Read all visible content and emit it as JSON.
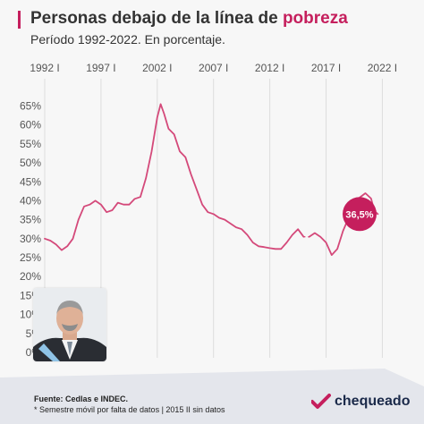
{
  "header": {
    "title_main": "Personas debajo de la línea de ",
    "title_highlight": "pobreza",
    "subtitle": "Período 1992-2022. En porcentaje."
  },
  "colors": {
    "accent": "#c51f5d",
    "line": "#d4497a",
    "grid": "#dddddd",
    "text": "#333333",
    "navy": "#1b2a4a"
  },
  "chart_data": {
    "type": "line",
    "title": "Personas debajo de la línea de pobreza",
    "subtitle": "Período 1992-2022. En porcentaje.",
    "xlabel": "",
    "ylabel": "",
    "x_ticks": [
      "1992 I",
      "1997 I",
      "2002 I",
      "2007 I",
      "2012 I",
      "2017 I",
      "2022 I"
    ],
    "x_tick_years": [
      1992,
      1997,
      2002,
      2007,
      2012,
      2017,
      2022
    ],
    "y_ticks": [
      "0%",
      "5%",
      "10%",
      "15%",
      "20%",
      "25%",
      "30%",
      "35%",
      "40%",
      "45%",
      "50%",
      "55%",
      "60%",
      "65%"
    ],
    "ylim": [
      0,
      67
    ],
    "xlim": [
      1992,
      2023
    ],
    "grid": "vertical",
    "legend": "none",
    "final_label": "36,5%",
    "series": [
      {
        "segments": [
          [
            [
              1992.0,
              30.0
            ],
            [
              1992.5,
              29.5
            ],
            [
              1993.0,
              28.5
            ],
            [
              1993.5,
              27.0
            ],
            [
              1994.0,
              28.0
            ],
            [
              1994.5,
              30.0
            ],
            [
              1995.0,
              35.0
            ],
            [
              1995.5,
              38.5
            ],
            [
              1996.0,
              39.0
            ],
            [
              1996.5,
              40.0
            ],
            [
              1997.0,
              39.0
            ],
            [
              1997.5,
              37.0
            ],
            [
              1998.0,
              37.5
            ],
            [
              1998.5,
              39.5
            ],
            [
              1999.0,
              39.0
            ],
            [
              1999.5,
              39.0
            ],
            [
              2000.0,
              40.5
            ],
            [
              2000.5,
              41.0
            ],
            [
              2001.0,
              46.0
            ],
            [
              2001.5,
              53.0
            ],
            [
              2002.0,
              62.0
            ],
            [
              2002.3,
              65.5
            ],
            [
              2002.6,
              63.0
            ],
            [
              2003.0,
              59.0
            ],
            [
              2003.5,
              57.5
            ],
            [
              2004.0,
              53.0
            ],
            [
              2004.5,
              51.5
            ],
            [
              2005.0,
              47.0
            ],
            [
              2005.5,
              43.0
            ],
            [
              2006.0,
              39.0
            ],
            [
              2006.5,
              37.0
            ],
            [
              2007.0,
              36.5
            ],
            [
              2007.5,
              35.5
            ],
            [
              2008.0,
              35.0
            ],
            [
              2008.5,
              34.0
            ],
            [
              2009.0,
              33.0
            ],
            [
              2009.5,
              32.5
            ],
            [
              2010.0,
              31.0
            ],
            [
              2010.5,
              29.0
            ],
            [
              2011.0,
              28.0
            ],
            [
              2011.5,
              27.8
            ],
            [
              2012.0,
              27.5
            ],
            [
              2012.5,
              27.3
            ],
            [
              2013.0,
              27.3
            ],
            [
              2013.5,
              29.0
            ],
            [
              2014.0,
              31.0
            ],
            [
              2014.5,
              32.5
            ],
            [
              2015.0,
              30.5
            ]
          ],
          [
            [
              2015.5,
              30.5
            ],
            [
              2016.0,
              31.5
            ],
            [
              2016.5,
              30.5
            ],
            [
              2017.0,
              29.0
            ],
            [
              2017.5,
              25.7
            ],
            [
              2018.0,
              27.3
            ],
            [
              2018.5,
              32.0
            ],
            [
              2019.0,
              35.5
            ],
            [
              2019.5,
              35.5
            ],
            [
              2020.0,
              40.9
            ],
            [
              2020.5,
              42.0
            ],
            [
              2021.0,
              40.6
            ],
            [
              2021.3,
              37.3
            ],
            [
              2021.6,
              36.5
            ]
          ]
        ]
      }
    ]
  },
  "footer": {
    "source_label": "Fuente: Cedlas e INDEC.",
    "note": "* Semestre móvil por falta de datos | 2015 II sin datos",
    "brand": "chequeado",
    "photo_alt_icon": "person-photo"
  }
}
